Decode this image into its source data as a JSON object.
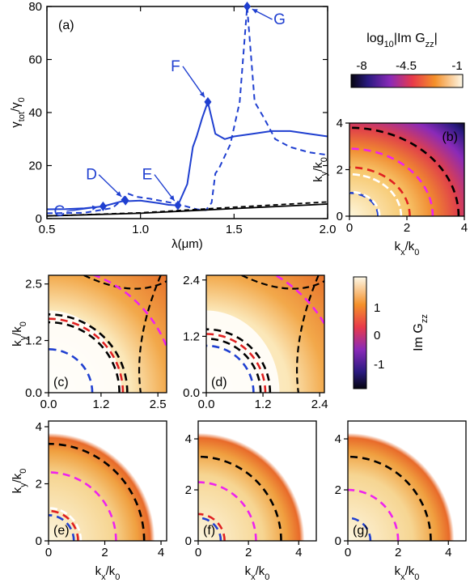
{
  "chart_data": [
    {
      "panel": "(a)",
      "type": "line",
      "xlabel": "λ(μm)",
      "ylabel": "γtot/γ0",
      "xlim": [
        0.5,
        2.0
      ],
      "ylim": [
        0,
        80
      ],
      "xticks": [
        "0.5",
        "1.0",
        "1.5",
        "2.0"
      ],
      "yticks": [
        "0",
        "20",
        "40",
        "60",
        "80"
      ],
      "series": [
        {
          "style": "solid-blue",
          "x": [
            0.5,
            0.6,
            0.7,
            0.8,
            0.9,
            1.0,
            1.1,
            1.15,
            1.2,
            1.25,
            1.28,
            1.3,
            1.33,
            1.36,
            1.38,
            1.4,
            1.45,
            1.5,
            1.6,
            1.7,
            1.8,
            1.9,
            2.0
          ],
          "y": [
            3.5,
            3.6,
            3.9,
            4.6,
            6.5,
            6.8,
            5.8,
            5.2,
            5.0,
            13,
            27,
            31,
            38,
            44,
            38,
            32,
            30,
            31,
            32,
            33,
            33,
            32,
            31
          ]
        },
        {
          "style": "dashed-blue",
          "x": [
            0.5,
            0.7,
            0.85,
            0.9,
            0.93,
            0.98,
            1.05,
            1.2,
            1.3,
            1.35,
            1.38,
            1.4,
            1.42,
            1.48,
            1.53,
            1.57,
            1.61,
            1.66,
            1.72,
            1.8,
            1.9,
            2.0
          ],
          "y": [
            2,
            2.2,
            4,
            7,
            9.5,
            8.2,
            7.5,
            5.5,
            3.5,
            3.2,
            6,
            17,
            19,
            28,
            44,
            80,
            44,
            38,
            30,
            27,
            25,
            24
          ]
        },
        {
          "style": "solid-black",
          "x": [
            0.5,
            1.0,
            1.5,
            2.0
          ],
          "y": [
            1,
            2,
            3.8,
            5.5
          ]
        },
        {
          "style": "dashed-black",
          "x": [
            0.5,
            1.0,
            1.5,
            2.0
          ],
          "y": [
            1,
            2.2,
            4.3,
            6.3
          ]
        }
      ],
      "markers": [
        {
          "label": "C",
          "x": 0.8,
          "y": 4.6
        },
        {
          "label": "D",
          "x": 0.92,
          "y": 6.8
        },
        {
          "label": "E",
          "x": 1.2,
          "y": 5.0
        },
        {
          "label": "F",
          "x": 1.36,
          "y": 44
        },
        {
          "label": "G",
          "x": 1.57,
          "y": 80
        }
      ]
    },
    {
      "panel": "(b)",
      "type": "heatmap",
      "title": "log10|Im Gzz|",
      "colorbar_ticks": [
        "-8",
        "-4.5",
        "-1"
      ],
      "xlabel": "kx/k0",
      "ylabel": "ky/k0",
      "xlim": [
        0,
        4
      ],
      "ylim": [
        0,
        4
      ],
      "xticks": [
        "0",
        "2",
        "4"
      ],
      "yticks": [
        "0",
        "2",
        "4"
      ],
      "circles": [
        {
          "color": "blue",
          "r": 1.0
        },
        {
          "color": "white",
          "r": 1.05
        },
        {
          "color": "white",
          "r": 1.8
        },
        {
          "color": "red",
          "r": 2.1
        },
        {
          "color": "magenta",
          "r": 2.9
        },
        {
          "color": "black",
          "r": 3.8
        }
      ]
    },
    {
      "panel": "(c)",
      "type": "heatmap",
      "xlabel": "",
      "ylabel": "ky/k0",
      "xlim": [
        0,
        2.7
      ],
      "ylim": [
        0,
        2.7
      ],
      "xticks": [
        "0.0",
        "1.2",
        "2.5"
      ],
      "yticks": [
        "0.0",
        "1.2",
        "2.5"
      ],
      "circles": [
        {
          "color": "blue",
          "r": 1.0
        },
        {
          "color": "black",
          "r": 1.8
        },
        {
          "color": "red",
          "r": 1.7
        },
        {
          "color": "black",
          "r": 1.62
        },
        {
          "color": "magenta",
          "r": 2.9
        }
      ]
    },
    {
      "panel": "(d)",
      "type": "heatmap",
      "xlabel": "",
      "ylabel": "",
      "xlim": [
        0,
        2.5
      ],
      "ylim": [
        0,
        2.5
      ],
      "xticks": [
        "0.0",
        "1.2",
        "2.4"
      ],
      "yticks": [
        "0.0",
        "1.2",
        "2.4"
      ],
      "circles": [
        {
          "color": "blue",
          "r": 1.0
        },
        {
          "color": "black",
          "r": 1.35
        },
        {
          "color": "red",
          "r": 1.25
        },
        {
          "color": "black",
          "r": 1.15
        },
        {
          "color": "magenta",
          "r": 2.9
        }
      ]
    },
    {
      "panel": "colorbar-2",
      "type": "colorbar",
      "label": "Im Gzz",
      "ticks": [
        "1",
        "0",
        "-1"
      ]
    },
    {
      "panel": "(e)",
      "type": "heatmap",
      "xlabel": "kx/k0",
      "ylabel": "ky/k0",
      "xlim": [
        0,
        4.2
      ],
      "ylim": [
        0,
        4.2
      ],
      "xticks": [
        "0",
        "2",
        "4"
      ],
      "yticks": [
        "0",
        "2",
        "4"
      ],
      "circles": [
        {
          "color": "blue",
          "r": 0.9
        },
        {
          "color": "red",
          "r": 1.05
        },
        {
          "color": "white",
          "r": 1.15
        },
        {
          "color": "magenta",
          "r": 2.4
        },
        {
          "color": "black",
          "r": 3.4
        }
      ]
    },
    {
      "panel": "(f)",
      "type": "heatmap",
      "xlabel": "kx/k0",
      "ylabel": "",
      "xlim": [
        0,
        4.7
      ],
      "ylim": [
        0,
        4.7
      ],
      "xticks": [
        "0",
        "2",
        "4"
      ],
      "yticks": [
        "0",
        "2",
        "4"
      ],
      "circles": [
        {
          "color": "blue",
          "r": 0.9
        },
        {
          "color": "red",
          "r": 1.05
        },
        {
          "color": "magenta",
          "r": 2.3
        },
        {
          "color": "black",
          "r": 3.3
        }
      ]
    },
    {
      "panel": "(g)",
      "type": "heatmap",
      "xlabel": "kx/k0",
      "ylabel": "",
      "xlim": [
        0,
        4.7
      ],
      "ylim": [
        0,
        4.7
      ],
      "xticks": [
        "0",
        "2",
        "4"
      ],
      "yticks": [
        "0",
        "2",
        "4"
      ],
      "circles": [
        {
          "color": "blue",
          "r": 0.9
        },
        {
          "color": "magenta",
          "r": 2.0
        },
        {
          "color": "black",
          "r": 3.3
        }
      ]
    }
  ],
  "colors": {
    "blue": "#1f3fd0",
    "red": "#e02020",
    "magenta": "#ee22ee",
    "black": "#000000"
  }
}
